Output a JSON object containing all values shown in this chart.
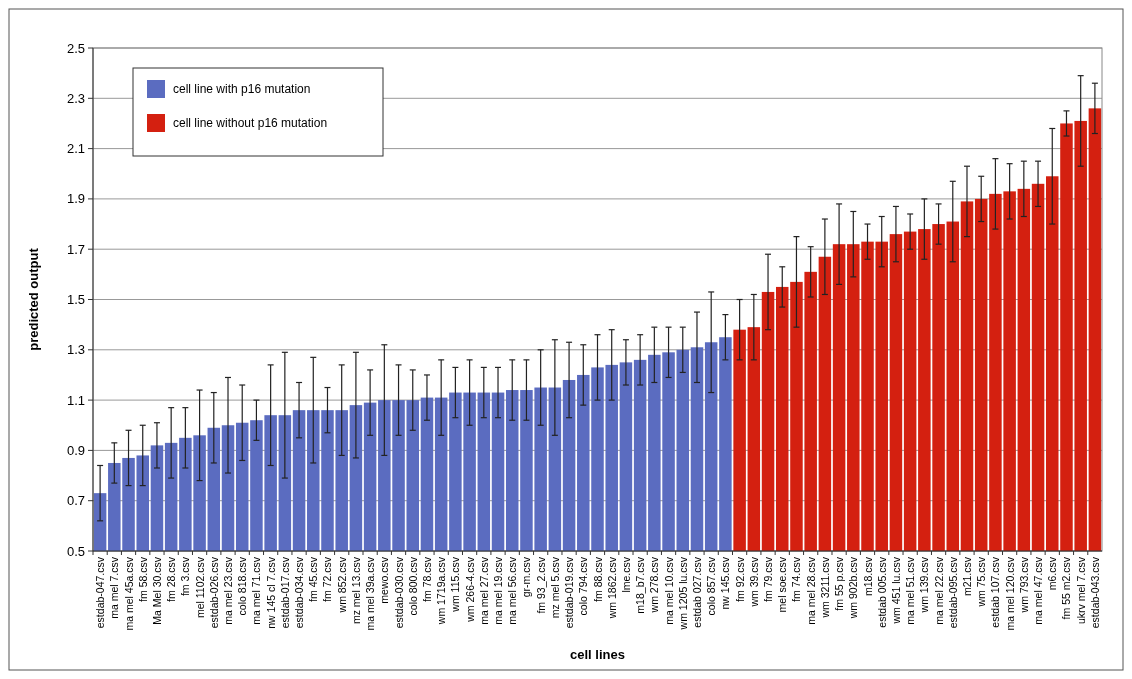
{
  "chart_data": {
    "type": "bar",
    "xlabel": "cell lines",
    "ylabel": "predicted output",
    "categories": [
      "estdab-047.csv",
      "ma mel 7.csv",
      "ma mel 45a.csv",
      "fm 58.csv",
      "Ma Mel 30.csv",
      "fm 28.csv",
      "fm 3.csv",
      "mel 1102.csv",
      "estdab-026.csv",
      "ma mel 23.csv",
      "colo 818.csv",
      "ma mel 71.csv",
      "nw 145 cl 7.csv",
      "estdab-017.csv",
      "estdab-034.csv",
      "fm 45.csv",
      "fm 72.csv",
      "wm 852.csv",
      "mz mel 13.csv",
      "ma mel 39a.csv",
      "mewo.csv",
      "estdab-030.csv",
      "colo 800.csv",
      "fm 78.csv",
      "wm 1719a.csv",
      "wm 115.csv",
      "wm 266-4.csv",
      "ma mel 27.csv",
      "ma mel 19.csv",
      "ma mel 56.csv",
      "gr-m.csv",
      "fm 93_2.csv",
      "mz mel 5.csv",
      "estdab-019.csv",
      "colo 794.csv",
      "fm 88.csv",
      "wm 1862.csv",
      "lme.csv",
      "m18_b7.csv",
      "wm 278.csv",
      "ma mel 10.csv",
      "wm 1205 lu.csv",
      "estdab 027.csv",
      "colo 857.csv",
      "nw 145.csv",
      "fm 92.csv",
      "wm 39.csv",
      "fm 79.csv",
      "mel soe.csv",
      "fm 74.csv",
      "ma mel 28.csv",
      "wm 3211.csv",
      "fm 55 p.csv",
      "wm 902b.csv",
      "m18.csv",
      "estdab 005.csv",
      "wm 451 lu.csv",
      "ma mel 51.csv",
      "wm 139.csv",
      "ma mel 22.csv",
      "estdab-095.csv",
      "m21.csv",
      "wm 75.csv",
      "estdab 107.csv",
      "ma mel 120.csv",
      "wm 793.csv",
      "ma mel 47.csv",
      "m6.csv",
      "fm 55 m2.csv",
      "ukrv mel 7.csv",
      "estdab-043.csv"
    ],
    "stacked": true,
    "series": [
      {
        "name": "cell line with p16 mutation",
        "color": "#5b6cc0",
        "values": [
          0.73,
          0.85,
          0.87,
          0.88,
          0.92,
          0.93,
          0.95,
          0.96,
          0.99,
          1.0,
          1.01,
          1.02,
          1.04,
          1.04,
          1.06,
          1.06,
          1.06,
          1.06,
          1.08,
          1.09,
          1.1,
          1.1,
          1.1,
          1.11,
          1.11,
          1.13,
          1.13,
          1.13,
          1.13,
          1.14,
          1.14,
          1.15,
          1.15,
          1.18,
          1.2,
          1.23,
          1.24,
          1.25,
          1.26,
          1.28,
          1.29,
          1.3,
          1.31,
          1.33,
          1.35,
          null,
          null,
          null,
          null,
          null,
          null,
          null,
          null,
          null,
          null,
          null,
          null,
          null,
          null,
          null,
          null,
          null,
          null,
          null,
          null,
          null,
          null,
          null,
          null,
          null,
          null
        ],
        "errors": [
          0.11,
          0.08,
          0.11,
          0.12,
          0.09,
          0.14,
          0.12,
          0.18,
          0.14,
          0.19,
          0.15,
          0.08,
          0.2,
          0.25,
          0.11,
          0.21,
          0.09,
          0.18,
          0.21,
          0.13,
          0.22,
          0.14,
          0.12,
          0.09,
          0.15,
          0.1,
          0.13,
          0.1,
          0.1,
          0.12,
          0.12,
          0.15,
          0.19,
          0.15,
          0.12,
          0.13,
          0.14,
          0.09,
          0.1,
          0.11,
          0.1,
          0.09,
          0.14,
          0.2,
          0.09,
          null,
          null,
          null,
          null,
          null,
          null,
          null,
          null,
          null,
          null,
          null,
          null,
          null,
          null,
          null,
          null,
          null,
          null,
          null,
          null,
          null,
          null,
          null,
          null,
          null,
          null
        ]
      },
      {
        "name": "cell line without p16 mutation",
        "color": "#d42010",
        "values": [
          null,
          null,
          null,
          null,
          null,
          null,
          null,
          null,
          null,
          null,
          null,
          null,
          null,
          null,
          null,
          null,
          null,
          null,
          null,
          null,
          null,
          null,
          null,
          null,
          null,
          null,
          null,
          null,
          null,
          null,
          null,
          null,
          null,
          null,
          null,
          null,
          null,
          null,
          null,
          null,
          null,
          null,
          null,
          null,
          null,
          1.38,
          1.39,
          1.53,
          1.55,
          1.57,
          1.61,
          1.67,
          1.72,
          1.72,
          1.73,
          1.73,
          1.76,
          1.77,
          1.78,
          1.8,
          1.81,
          1.89,
          1.9,
          1.92,
          1.93,
          1.94,
          1.96,
          1.99,
          2.2,
          2.21,
          2.26
        ],
        "errors": [
          null,
          null,
          null,
          null,
          null,
          null,
          null,
          null,
          null,
          null,
          null,
          null,
          null,
          null,
          null,
          null,
          null,
          null,
          null,
          null,
          null,
          null,
          null,
          null,
          null,
          null,
          null,
          null,
          null,
          null,
          null,
          null,
          null,
          null,
          null,
          null,
          null,
          null,
          null,
          null,
          null,
          null,
          null,
          null,
          null,
          0.12,
          0.13,
          0.15,
          0.08,
          0.18,
          0.1,
          0.15,
          0.16,
          0.13,
          0.07,
          0.1,
          0.11,
          0.07,
          0.12,
          0.08,
          0.16,
          0.14,
          0.09,
          0.14,
          0.11,
          0.11,
          0.09,
          0.19,
          0.05,
          0.18,
          0.1
        ]
      }
    ],
    "ylim": [
      0.5,
      2.5
    ],
    "yticks": [
      0.5,
      0.7,
      0.9,
      1.1,
      1.3,
      1.5,
      1.7,
      1.9,
      2.1,
      2.3,
      2.5
    ],
    "grid": "y",
    "legend": "top left"
  }
}
